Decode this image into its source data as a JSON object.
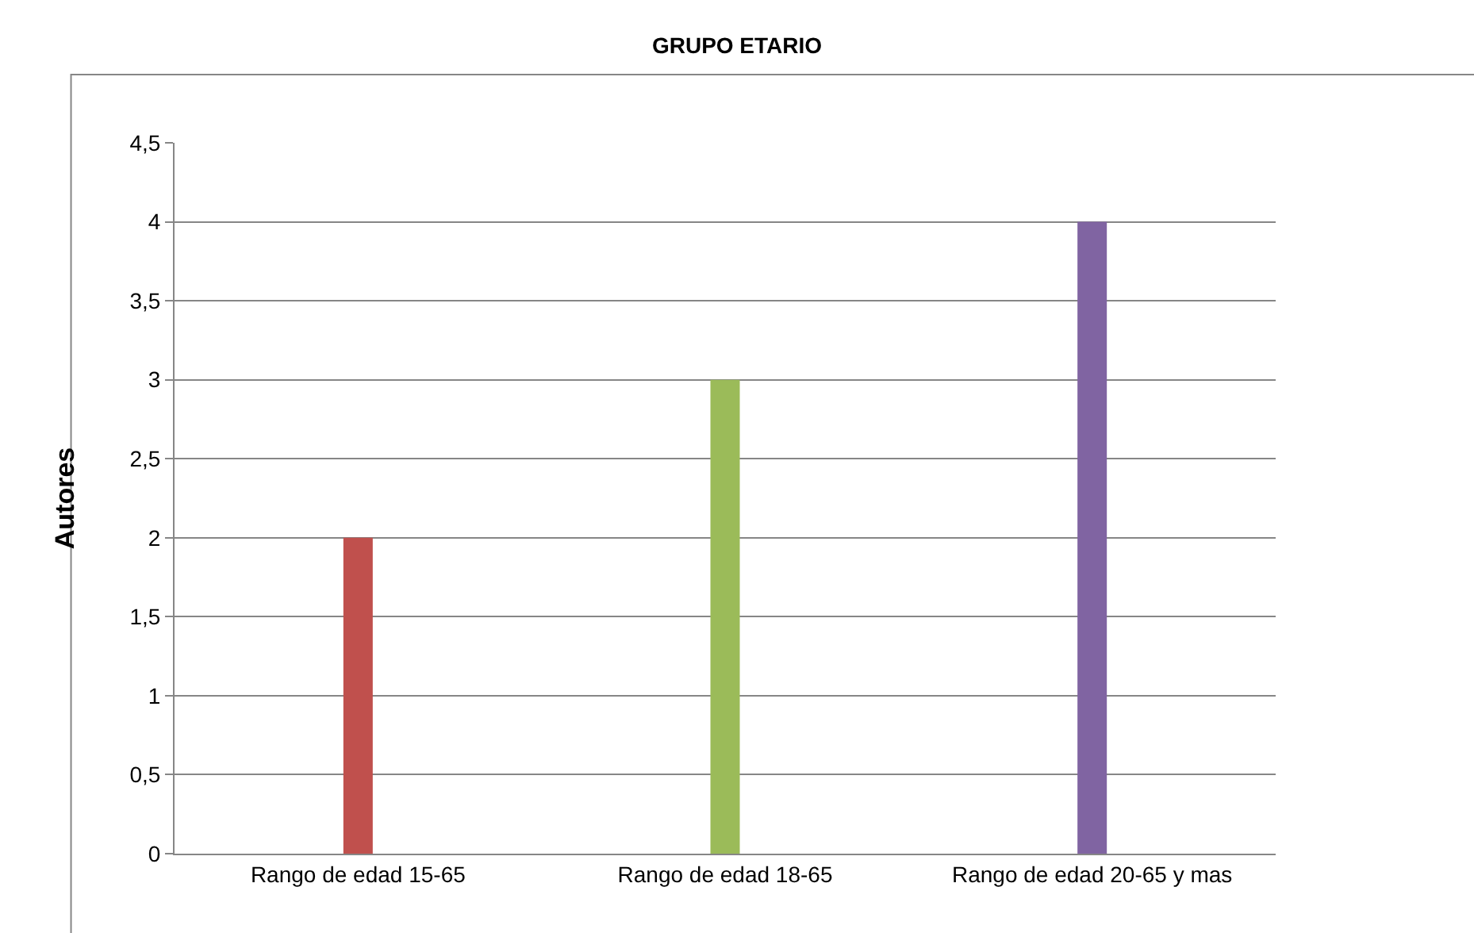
{
  "chart_data": {
    "type": "bar",
    "title": "GRUPO ETARIO",
    "ylabel": "Autores",
    "categories": [
      "Rango de edad 15-65",
      "Rango de edad 18-65",
      "Rango de edad 20-65 y mas"
    ],
    "values": [
      2,
      3,
      4
    ],
    "colors": [
      "#c0504d",
      "#9bbb59",
      "#8064a2"
    ],
    "ylim": [
      0,
      4.5
    ],
    "yticks": [
      0,
      {
        "value": 0.5,
        "label": "0,5"
      },
      1,
      {
        "value": 1.5,
        "label": "1,5"
      },
      2,
      {
        "value": 2.5,
        "label": "2,5"
      },
      3,
      {
        "value": 3.5,
        "label": "3,5"
      },
      4,
      {
        "value": 4.5,
        "label": "4,5"
      }
    ],
    "grid": "y"
  }
}
